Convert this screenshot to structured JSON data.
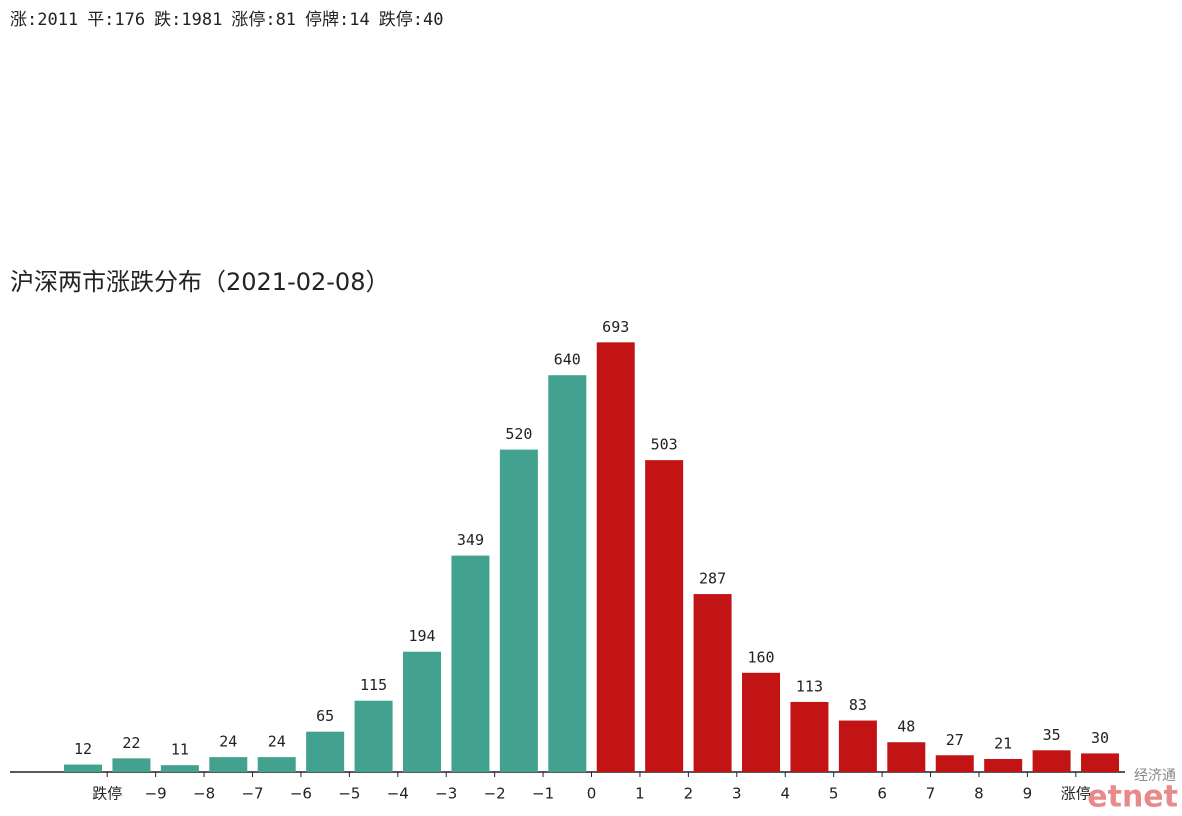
{
  "header_stats": [
    "涨:2011",
    "平:176",
    "跌:1981",
    "涨停:81",
    "停牌:14",
    "跌停:40"
  ],
  "chart_data": {
    "type": "bar",
    "title": "沪深两市涨跌分布（2021-02-08）",
    "x_tick_labels": [
      "跌停",
      "−9",
      "−8",
      "−7",
      "−6",
      "−5",
      "−4",
      "−3",
      "−2",
      "−1",
      "0",
      "1",
      "2",
      "3",
      "4",
      "5",
      "6",
      "7",
      "8",
      "9",
      "涨停"
    ],
    "series": [
      {
        "color": "#43a18f",
        "values": [
          12,
          22,
          11,
          24,
          24,
          65,
          115,
          194,
          349,
          520,
          640
        ]
      },
      {
        "color": "#c21414",
        "values": [
          693,
          503,
          287,
          160,
          113,
          83,
          48,
          27,
          21,
          35,
          30
        ]
      }
    ],
    "ylim": [
      0,
      700
    ]
  },
  "watermark": {
    "cn": "经济通",
    "en": "etnet"
  }
}
